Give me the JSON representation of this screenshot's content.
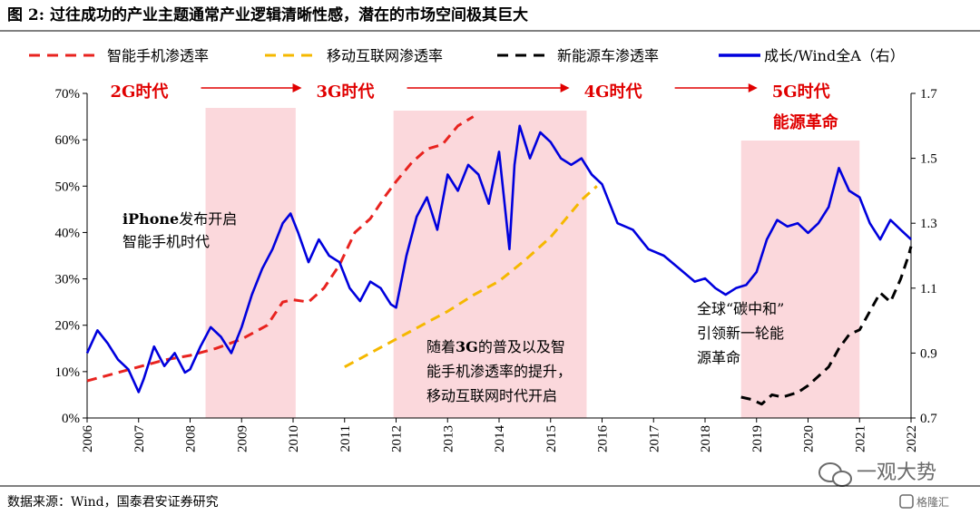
{
  "figure_title": "图 2: 过往成功的产业主题通常产业逻辑清晰性感，潜在的市场空间极其巨大",
  "source_note": "数据来源：Wind，国泰君安证券研究",
  "watermark": {
    "text": "一观大势",
    "brand": "格隆汇",
    "icon": "wechat-icon"
  },
  "colors": {
    "smartphone": "#e8231f",
    "internet": "#f5b800",
    "nev": "#000000",
    "growth": "#0000dd",
    "shade": "#fbd8dc",
    "era": "#e00000"
  },
  "chart_data": {
    "type": "line",
    "title": "",
    "legend_position": "top",
    "x_ticks": [
      "2006",
      "2007",
      "2008",
      "2009",
      "2010",
      "2011",
      "2012",
      "2013",
      "2014",
      "2015",
      "2016",
      "2017",
      "2018",
      "2019",
      "2020",
      "2021",
      "2022"
    ],
    "x_range": [
      2006.0,
      2022.0
    ],
    "y_left": {
      "ticks": [
        "0%",
        "10%",
        "20%",
        "30%",
        "40%",
        "50%",
        "60%",
        "70%"
      ],
      "range": [
        0,
        70
      ],
      "unit": "%"
    },
    "y_right": {
      "ticks": [
        "0.7",
        "0.9",
        "1.1",
        "1.3",
        "1.5",
        "1.7"
      ],
      "range": [
        0.7,
        1.7
      ]
    },
    "series": [
      {
        "name": "智能手机渗透率",
        "axis": "left",
        "style": "dashed",
        "color": "#e8231f",
        "x": [
          2006.0,
          2006.5,
          2007.0,
          2007.5,
          2008.0,
          2008.5,
          2009.0,
          2009.5,
          2009.8,
          2010.0,
          2010.3,
          2010.6,
          2010.9,
          2011.2,
          2011.5,
          2011.8,
          2012.0,
          2012.3,
          2012.6,
          2012.9,
          2013.2,
          2013.5
        ],
        "y": [
          8,
          9.5,
          11,
          12.5,
          13.5,
          15,
          17,
          20,
          25,
          25.5,
          25,
          28,
          33,
          40,
          43,
          48,
          51,
          55,
          58,
          59,
          63,
          65
        ]
      },
      {
        "name": "移动互联网渗透率",
        "axis": "left",
        "style": "dashed",
        "color": "#f5b800",
        "x": [
          2011.0,
          2011.5,
          2012.0,
          2012.5,
          2013.0,
          2013.5,
          2014.0,
          2014.5,
          2015.0,
          2015.3,
          2015.6,
          2015.9
        ],
        "y": [
          11,
          14,
          17,
          20,
          23,
          26.5,
          29.5,
          34,
          39,
          43,
          47,
          50
        ]
      },
      {
        "name": "新能源车渗透率",
        "axis": "left",
        "style": "dashed",
        "color": "#000000",
        "x": [
          2018.7,
          2018.9,
          2019.1,
          2019.3,
          2019.5,
          2019.8,
          2020.0,
          2020.2,
          2020.4,
          2020.6,
          2020.8,
          2021.0,
          2021.2,
          2021.4,
          2021.6,
          2021.8,
          2021.95,
          2022.0
        ],
        "y": [
          4.5,
          4,
          3,
          5,
          4.5,
          5.5,
          7,
          9,
          11,
          15,
          18,
          19,
          23,
          27,
          25,
          30,
          35,
          37
        ]
      },
      {
        "name": "成长/Wind全A（右）",
        "axis": "right",
        "style": "solid",
        "color": "#0000dd",
        "x": [
          2006.0,
          2006.2,
          2006.4,
          2006.6,
          2006.8,
          2007.0,
          2007.1,
          2007.3,
          2007.5,
          2007.7,
          2007.9,
          2008.0,
          2008.2,
          2008.4,
          2008.6,
          2008.8,
          2009.0,
          2009.2,
          2009.4,
          2009.6,
          2009.8,
          2009.95,
          2010.1,
          2010.3,
          2010.5,
          2010.7,
          2010.9,
          2011.1,
          2011.3,
          2011.5,
          2011.7,
          2011.9,
          2012.0,
          2012.2,
          2012.4,
          2012.6,
          2012.8,
          2013.0,
          2013.2,
          2013.4,
          2013.6,
          2013.8,
          2014.0,
          2014.2,
          2014.3,
          2014.4,
          2014.6,
          2014.8,
          2015.0,
          2015.2,
          2015.4,
          2015.6,
          2015.8,
          2016.0,
          2016.3,
          2016.6,
          2016.9,
          2017.2,
          2017.5,
          2017.8,
          2018.0,
          2018.2,
          2018.4,
          2018.6,
          2018.8,
          2019.0,
          2019.2,
          2019.4,
          2019.6,
          2019.8,
          2020.0,
          2020.2,
          2020.4,
          2020.6,
          2020.8,
          2021.0,
          2021.2,
          2021.4,
          2021.6,
          2021.8,
          2022.0
        ],
        "y": [
          0.9,
          0.97,
          0.93,
          0.88,
          0.85,
          0.78,
          0.82,
          0.92,
          0.86,
          0.9,
          0.84,
          0.85,
          0.92,
          0.98,
          0.95,
          0.9,
          0.98,
          1.08,
          1.16,
          1.22,
          1.3,
          1.33,
          1.27,
          1.18,
          1.25,
          1.2,
          1.18,
          1.1,
          1.06,
          1.12,
          1.1,
          1.05,
          1.04,
          1.2,
          1.32,
          1.38,
          1.28,
          1.45,
          1.4,
          1.48,
          1.45,
          1.36,
          1.52,
          1.22,
          1.48,
          1.6,
          1.5,
          1.58,
          1.55,
          1.5,
          1.48,
          1.5,
          1.45,
          1.42,
          1.3,
          1.28,
          1.22,
          1.2,
          1.16,
          1.12,
          1.13,
          1.1,
          1.08,
          1.1,
          1.11,
          1.15,
          1.25,
          1.31,
          1.29,
          1.3,
          1.27,
          1.3,
          1.35,
          1.47,
          1.4,
          1.38,
          1.3,
          1.25,
          1.31,
          1.28,
          1.25
        ]
      }
    ],
    "shaded_periods": [
      [
        2008.3,
        2010.05
      ],
      [
        2011.95,
        2015.7
      ],
      [
        2018.7,
        2021.0
      ]
    ],
    "era_labels": [
      {
        "text": "2G时代",
        "x": 2006.45
      },
      {
        "text": "3G时代",
        "x": 2010.45
      },
      {
        "text": "4G时代",
        "x": 2015.65
      },
      {
        "text": "5G时代",
        "x": 2019.3
      }
    ],
    "era_sublabel": "能源革命",
    "annotations": [
      {
        "lines": [
          [
            "iPhone",
            "发布开启"
          ],
          [
            "智能手机时代"
          ]
        ]
      },
      {
        "lines": [
          [
            "随着",
            "3G",
            "的普及以及智"
          ],
          [
            "能手机渗透率的提升，"
          ],
          [
            "移动互联网时代开启"
          ]
        ]
      },
      {
        "lines": [
          [
            "全球“碳中和”"
          ],
          [
            "引领新一轮能"
          ],
          [
            "源革命"
          ]
        ]
      }
    ]
  }
}
